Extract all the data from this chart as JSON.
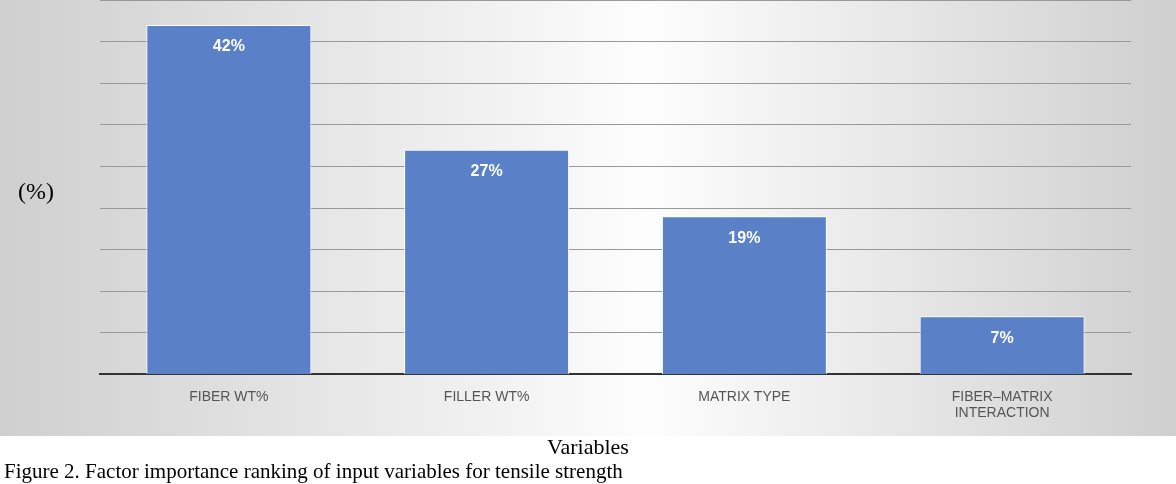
{
  "chart_data": {
    "type": "bar",
    "categories": [
      "FIBER WT%",
      "FILLER WT%",
      "MATRIX TYPE",
      "FIBER–MATRIX INTERACTION"
    ],
    "values": [
      42,
      27,
      19,
      7
    ],
    "color": "#5a80c8",
    "value_labels": [
      "42%",
      "27%",
      "19%",
      "7%"
    ],
    "ylim": [
      0,
      45
    ],
    "yticks": [
      {
        "value": 0,
        "label": null
      },
      {
        "value": 5,
        "label": null
      },
      {
        "value": 10,
        "label": null
      },
      {
        "value": 15,
        "label": null
      },
      {
        "value": 20,
        "label": null
      },
      {
        "value": 25,
        "label": null
      },
      {
        "value": 30,
        "label": null
      },
      {
        "value": 35,
        "label": null
      },
      {
        "value": 40,
        "label": null
      },
      {
        "value": 45,
        "label": null
      }
    ],
    "grid": "y",
    "tick_labels": "x",
    "ylabel": "(%)",
    "xlabel": "Variables",
    "annotations": [
      "Figure 2. Factor importance ranking of input variables for tensile strength"
    ]
  }
}
